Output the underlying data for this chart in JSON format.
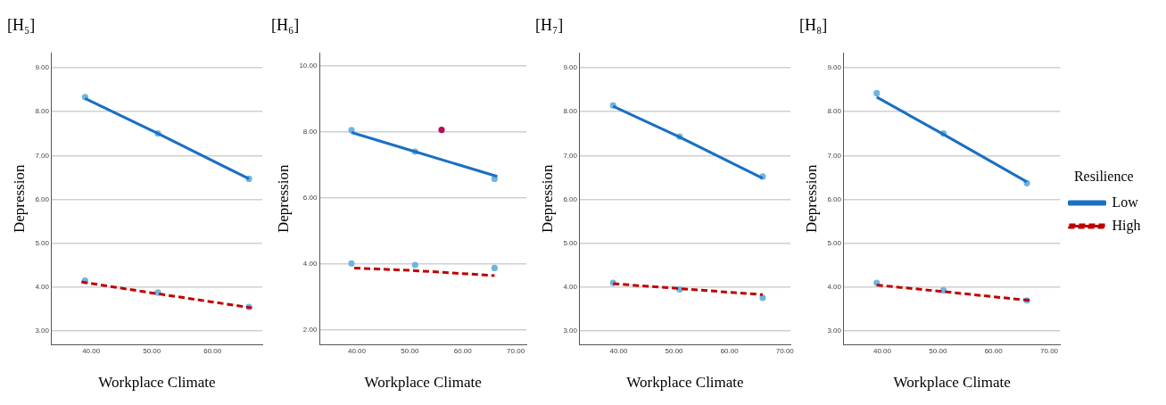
{
  "chart_data": [
    {
      "type": "line",
      "title": "[H₅]",
      "xlabel": "Workplace Climate",
      "ylabel": "Depression",
      "xlim": [
        33.5,
        68.2
      ],
      "xticks": [
        {
          "value": 40,
          "label": "40.00"
        },
        {
          "value": 50,
          "label": "50.00"
        },
        {
          "value": 60,
          "label": "60.00"
        }
      ],
      "ylim": [
        2.7,
        9.33
      ],
      "yticks": [
        {
          "value": 3,
          "label": "3.00"
        },
        {
          "value": 4,
          "label": "4.00"
        },
        {
          "value": 5,
          "label": "5.00"
        },
        {
          "value": 6,
          "label": "6.00"
        },
        {
          "value": 7,
          "label": "7.00"
        },
        {
          "value": 8,
          "label": "8.00"
        },
        {
          "value": 9,
          "label": "9.00"
        }
      ],
      "grid": "y",
      "legend": false,
      "series": [
        {
          "color": "#1a6fc4",
          "line_style": "solid",
          "x": [
            39,
            51,
            66
          ],
          "values": [
            8.3,
            7.5,
            6.47
          ]
        },
        {
          "color": "#c00000",
          "line_style": "dashed",
          "x": [
            38.4,
            51,
            66.5
          ],
          "values": [
            4.12,
            3.85,
            3.53
          ]
        },
        {
          "type": "scatter",
          "marker": "circle",
          "color": "#6fb5e0",
          "x": [
            39,
            51,
            66,
            39,
            51,
            66
          ],
          "values": [
            8.33,
            7.5,
            6.47,
            4.15,
            3.88,
            3.55
          ]
        }
      ]
    },
    {
      "type": "line",
      "title": "[H₆]",
      "xlabel": "Workplace Climate",
      "ylabel": "Depression",
      "xlim": [
        33,
        72
      ],
      "xticks": [
        {
          "value": 40,
          "label": "40.00"
        },
        {
          "value": 50,
          "label": "50.00"
        },
        {
          "value": 60,
          "label": "60.00"
        },
        {
          "value": 70,
          "label": "70.00"
        }
      ],
      "ylim": [
        1.57,
        10.38
      ],
      "yticks": [
        {
          "value": 2,
          "label": "2.00"
        },
        {
          "value": 4,
          "label": "4.00"
        },
        {
          "value": 6,
          "label": "6.00"
        },
        {
          "value": 8,
          "label": "8.00"
        },
        {
          "value": 10,
          "label": "10.00"
        }
      ],
      "grid": "y",
      "legend": false,
      "series": [
        {
          "color": "#1a6fc4",
          "line_style": "solid",
          "x": [
            39,
            51,
            66.5
          ],
          "values": [
            7.98,
            7.4,
            6.65
          ]
        },
        {
          "color": "#c00000",
          "line_style": "dashed",
          "x": [
            39.5,
            51,
            66
          ],
          "values": [
            3.88,
            3.8,
            3.65
          ]
        },
        {
          "type": "scatter",
          "marker": "circle",
          "color": "#6fb5e0",
          "x": [
            39,
            51,
            66,
            39,
            51,
            66
          ],
          "values": [
            8.05,
            7.4,
            6.58,
            4.02,
            3.97,
            3.88
          ]
        },
        {
          "type": "scatter",
          "marker": "circle",
          "color": "#b0105a",
          "x": [
            56
          ],
          "values": [
            8.06
          ]
        }
      ]
    },
    {
      "type": "line",
      "title": "[H₇]",
      "xlabel": "Workplace Climate",
      "ylabel": "Depression",
      "xlim": [
        33,
        71
      ],
      "xticks": [
        {
          "value": 40,
          "label": "40.00"
        },
        {
          "value": 50,
          "label": "50.00"
        },
        {
          "value": 60,
          "label": "60.00"
        },
        {
          "value": 70,
          "label": "70.00"
        }
      ],
      "ylim": [
        2.7,
        9.33
      ],
      "yticks": [
        {
          "value": 3,
          "label": "3.00"
        },
        {
          "value": 4,
          "label": "4.00"
        },
        {
          "value": 5,
          "label": "5.00"
        },
        {
          "value": 6,
          "label": "6.00"
        },
        {
          "value": 7,
          "label": "7.00"
        },
        {
          "value": 8,
          "label": "8.00"
        },
        {
          "value": 9,
          "label": "9.00"
        }
      ],
      "grid": "y",
      "legend": false,
      "series": [
        {
          "color": "#1a6fc4",
          "line_style": "solid",
          "x": [
            39,
            51,
            66
          ],
          "values": [
            8.12,
            7.42,
            6.48
          ]
        },
        {
          "color": "#c00000",
          "line_style": "dashed",
          "x": [
            39,
            51,
            66
          ],
          "values": [
            4.08,
            3.97,
            3.83
          ]
        },
        {
          "type": "scatter",
          "marker": "circle",
          "color": "#6fb5e0",
          "x": [
            39,
            51,
            66,
            39,
            51,
            66
          ],
          "values": [
            8.14,
            7.43,
            6.52,
            4.1,
            3.95,
            3.76
          ]
        }
      ]
    },
    {
      "type": "line",
      "title": "[H₈]",
      "xlabel": "Workplace Climate",
      "ylabel": "Depression",
      "legend_title": "Resilience",
      "xlim": [
        33.1,
        72
      ],
      "xticks": [
        {
          "value": 40,
          "label": "40.00"
        },
        {
          "value": 50,
          "label": "50.00"
        },
        {
          "value": 60,
          "label": "60.00"
        },
        {
          "value": 70,
          "label": "70.00"
        }
      ],
      "ylim": [
        2.7,
        9.33
      ],
      "yticks": [
        {
          "value": 3,
          "label": "3.00"
        },
        {
          "value": 4,
          "label": "4.00"
        },
        {
          "value": 5,
          "label": "5.00"
        },
        {
          "value": 6,
          "label": "6.00"
        },
        {
          "value": 7,
          "label": "7.00"
        },
        {
          "value": 8,
          "label": "8.00"
        },
        {
          "value": 9,
          "label": "9.00"
        }
      ],
      "grid": "y",
      "legend": "right",
      "series": [
        {
          "name": "Low",
          "color": "#1a6fc4",
          "line_style": "solid",
          "x": [
            39,
            51,
            66
          ],
          "values": [
            8.33,
            7.48,
            6.4
          ]
        },
        {
          "name": "High",
          "color": "#c00000",
          "line_style": "dashed",
          "x": [
            39,
            51,
            66.5
          ],
          "values": [
            4.05,
            3.9,
            3.7
          ]
        },
        {
          "type": "scatter",
          "marker": "circle",
          "color": "#6fb5e0",
          "x": [
            39,
            51,
            66,
            39,
            51,
            66
          ],
          "values": [
            8.42,
            7.5,
            6.37,
            4.1,
            3.93,
            3.7
          ]
        }
      ]
    }
  ]
}
